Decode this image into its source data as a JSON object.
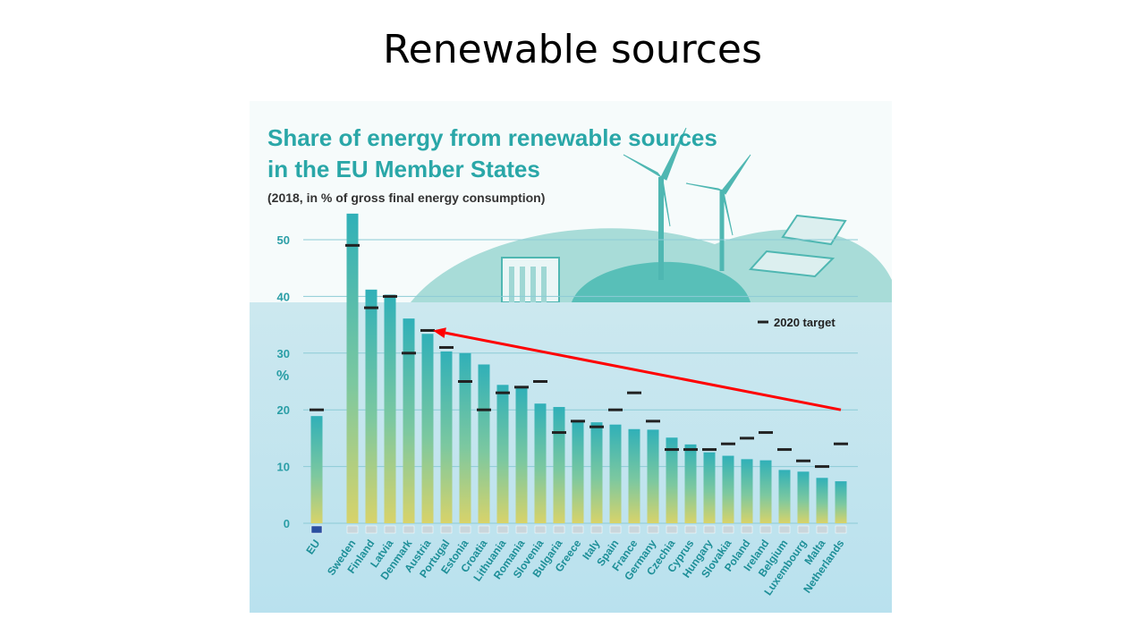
{
  "slide": {
    "title": "Renewable sources"
  },
  "chart_data": {
    "type": "bar",
    "title": "Share of energy from renewable sources",
    "title_line2": "in the EU Member States",
    "subtitle": "(2018, in % of gross final energy consumption)",
    "ylabel": "%",
    "ylim": [
      0,
      55
    ],
    "yticks": [
      0,
      10,
      20,
      30,
      40,
      50
    ],
    "grid": true,
    "legend": {
      "label": "2020 target",
      "position": "top-right"
    },
    "categories": [
      "EU",
      "Sweden",
      "Finland",
      "Latvia",
      "Denmark",
      "Austria",
      "Portugal",
      "Estonia",
      "Croatia",
      "Lithuania",
      "Romania",
      "Slovenia",
      "Bulgaria",
      "Greece",
      "Italy",
      "Spain",
      "France",
      "Germany",
      "Czechia",
      "Cyprus",
      "Hungary",
      "Slovakia",
      "Poland",
      "Ireland",
      "Belgium",
      "Luxembourg",
      "Malta",
      "Netherlands"
    ],
    "series": [
      {
        "name": "",
        "values": [
          18.9,
          54.6,
          41.2,
          40.3,
          36.1,
          33.4,
          30.3,
          30.0,
          28.0,
          24.4,
          23.9,
          21.1,
          20.5,
          18.0,
          17.8,
          17.4,
          16.6,
          16.5,
          15.1,
          13.9,
          12.5,
          11.9,
          11.3,
          11.1,
          9.4,
          9.1,
          8.0,
          7.4
        ]
      },
      {
        "name": "2020 target",
        "values": [
          20,
          49,
          38,
          40,
          30,
          34,
          31,
          25,
          20,
          23,
          24,
          25,
          16,
          18,
          17,
          20,
          23,
          18,
          13,
          13,
          13,
          14,
          15,
          16,
          13,
          11,
          10,
          14
        ]
      }
    ],
    "colors": {
      "bar_top": "#30b0b8",
      "bar_bottom": "#d8d36a",
      "eu_marker": "#2a4fa0",
      "target": "#222222",
      "arrow": "#ff0000"
    },
    "annotation": {
      "type": "arrow",
      "color": "#ff0000",
      "from_category": "Netherlands",
      "from_value": 20,
      "to_category": "Austria",
      "to_value": 34
    }
  }
}
